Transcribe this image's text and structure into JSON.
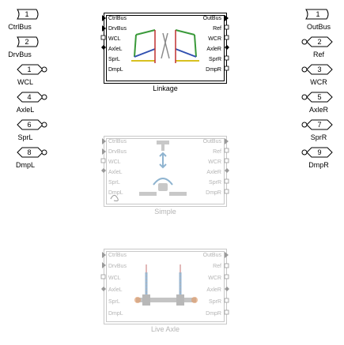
{
  "inputs": [
    {
      "num": "1",
      "label": "CtrlBus",
      "shape": "bus-in"
    },
    {
      "num": "2",
      "label": "DrvBus",
      "shape": "bus-in"
    },
    {
      "num": "1",
      "label": "WCL",
      "shape": "conn"
    },
    {
      "num": "4",
      "label": "AxleL",
      "shape": "conn"
    },
    {
      "num": "6",
      "label": "SprL",
      "shape": "conn"
    },
    {
      "num": "8",
      "label": "DmpL",
      "shape": "conn"
    }
  ],
  "outputs": [
    {
      "num": "1",
      "label": "OutBus",
      "shape": "bus-out"
    },
    {
      "num": "2",
      "label": "Ref",
      "shape": "conn"
    },
    {
      "num": "3",
      "label": "WCR",
      "shape": "conn"
    },
    {
      "num": "5",
      "label": "AxleR",
      "shape": "conn"
    },
    {
      "num": "7",
      "label": "SprR",
      "shape": "conn"
    },
    {
      "num": "9",
      "label": "DmpR",
      "shape": "conn"
    }
  ],
  "blocks": [
    {
      "caption": "Linkage",
      "left_ports": [
        "CtrlBus",
        "DrvBus",
        "WCL",
        "AxleL",
        "SprL",
        "DmpL"
      ],
      "right_ports": [
        "OutBus",
        "Ref",
        "WCR",
        "AxleR",
        "SprR",
        "DmpR"
      ],
      "active": true,
      "colors": {
        "link_green": "#3a9a3a",
        "link_blue": "#3050b0",
        "link_yellow": "#d8c020",
        "link_red": "#c03030"
      }
    },
    {
      "caption": "Simple",
      "left_ports": [
        "CtrlBus",
        "DrvBus",
        "WCL",
        "AxleL",
        "SprL",
        "DmpL"
      ],
      "right_ports": [
        "OutBus",
        "Ref",
        "WCR",
        "AxleR",
        "SprR",
        "DmpR"
      ],
      "active": false
    },
    {
      "caption": "Live Axle",
      "left_ports": [
        "CtrlBus",
        "DrvBus",
        "WCL",
        "AxleL",
        "SprL",
        "DmpL"
      ],
      "right_ports": [
        "OutBus",
        "Ref",
        "WCR",
        "AxleR",
        "SprR",
        "DmpR"
      ],
      "active": false
    }
  ]
}
